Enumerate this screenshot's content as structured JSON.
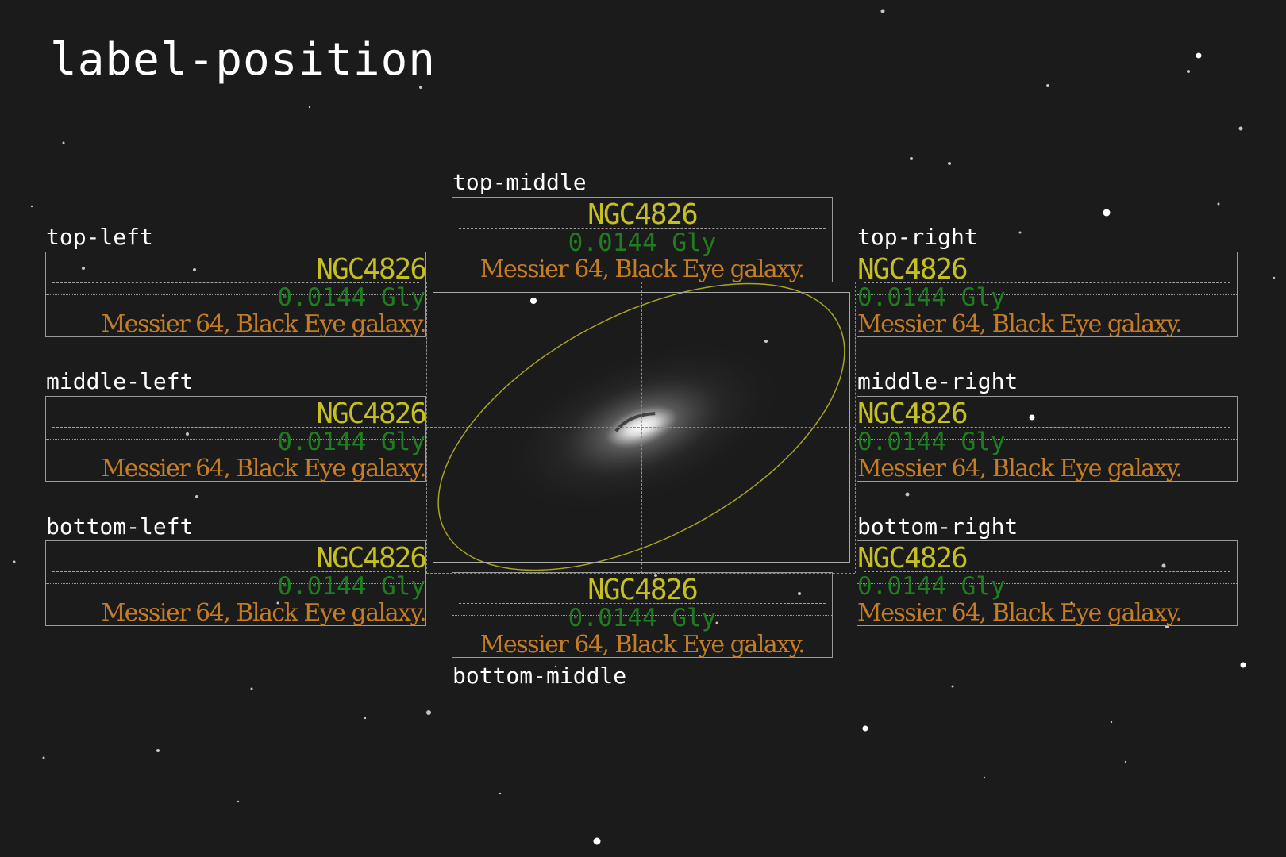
{
  "title": "label-position",
  "label": {
    "name": "NGC4826",
    "distance": "0.0144 Gly",
    "description": "Messier 64, Black Eye galaxy."
  },
  "positions": [
    {
      "key": "top-left",
      "text": "top-left"
    },
    {
      "key": "top-middle",
      "text": "top-middle"
    },
    {
      "key": "top-right",
      "text": "top-right"
    },
    {
      "key": "middle-left",
      "text": "middle-left"
    },
    {
      "key": "middle-right",
      "text": "middle-right"
    },
    {
      "key": "bottom-left",
      "text": "bottom-left"
    },
    {
      "key": "bottom-middle",
      "text": "bottom-middle"
    },
    {
      "key": "bottom-right",
      "text": "bottom-right"
    }
  ],
  "colors": {
    "background": "#1b1b1b",
    "name": "#c4bf22",
    "distance": "#1f7d1f",
    "description": "#c57d25",
    "ellipse": "#a9a422",
    "frame": "#a9a9a9"
  },
  "icons": {
    "galaxy": "galaxy-image",
    "ellipse": "galaxy-outline-ellipse"
  }
}
